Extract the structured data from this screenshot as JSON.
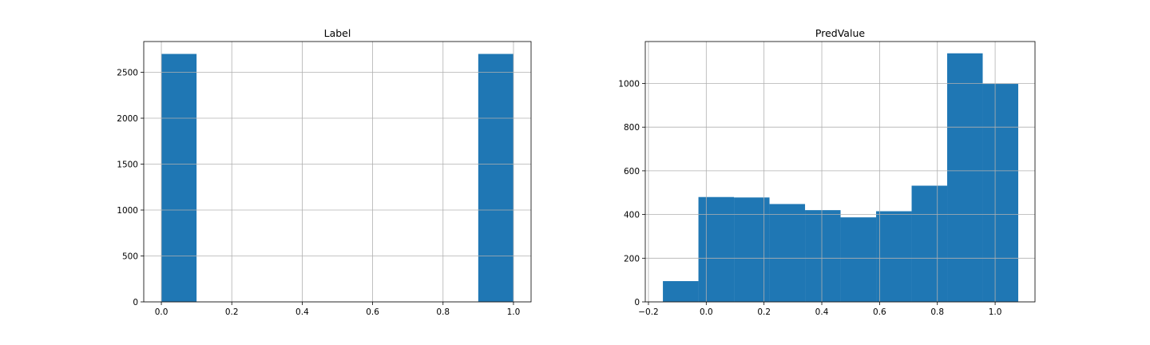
{
  "chart_data": [
    {
      "type": "bar",
      "title": "Label",
      "xlabel": "",
      "ylabel": "",
      "xlim": [
        -0.05,
        1.05
      ],
      "ylim": [
        0,
        2835
      ],
      "grid": true,
      "bar_color": "#1f77b4",
      "grid_color": "#b0b0b0",
      "bin_edges": [
        0.0,
        0.1,
        0.2,
        0.3,
        0.4,
        0.5,
        0.6,
        0.7,
        0.8,
        0.9,
        1.0
      ],
      "values": [
        2700,
        0,
        0,
        0,
        0,
        0,
        0,
        0,
        0,
        2700
      ],
      "x_ticks": [
        0.0,
        0.2,
        0.4,
        0.6,
        0.8,
        1.0
      ],
      "x_tick_labels": [
        "0.0",
        "0.2",
        "0.4",
        "0.6",
        "0.8",
        "1.0"
      ],
      "y_ticks": [
        0,
        500,
        1000,
        1500,
        2000,
        2500
      ],
      "y_tick_labels": [
        "0",
        "500",
        "1000",
        "1500",
        "2000",
        "2500"
      ]
    },
    {
      "type": "bar",
      "title": "PredValue",
      "xlabel": "",
      "ylabel": "",
      "xlim": [
        -0.211,
        1.138
      ],
      "ylim": [
        0,
        1192
      ],
      "grid": true,
      "bar_color": "#1f77b4",
      "grid_color": "#b0b0b0",
      "bin_edges": [
        -0.15,
        -0.027,
        0.096,
        0.219,
        0.342,
        0.465,
        0.588,
        0.711,
        0.834,
        0.957,
        1.08
      ],
      "values": [
        95,
        480,
        478,
        448,
        420,
        387,
        415,
        532,
        1138,
        998
      ],
      "x_ticks": [
        -0.2,
        0.0,
        0.2,
        0.4,
        0.6,
        0.8,
        1.0
      ],
      "x_tick_labels": [
        "−0.2",
        "0.0",
        "0.2",
        "0.4",
        "0.6",
        "0.8",
        "1.0"
      ],
      "y_ticks": [
        0,
        200,
        400,
        600,
        800,
        1000
      ],
      "y_tick_labels": [
        "0",
        "200",
        "400",
        "600",
        "800",
        "1000"
      ]
    }
  ]
}
